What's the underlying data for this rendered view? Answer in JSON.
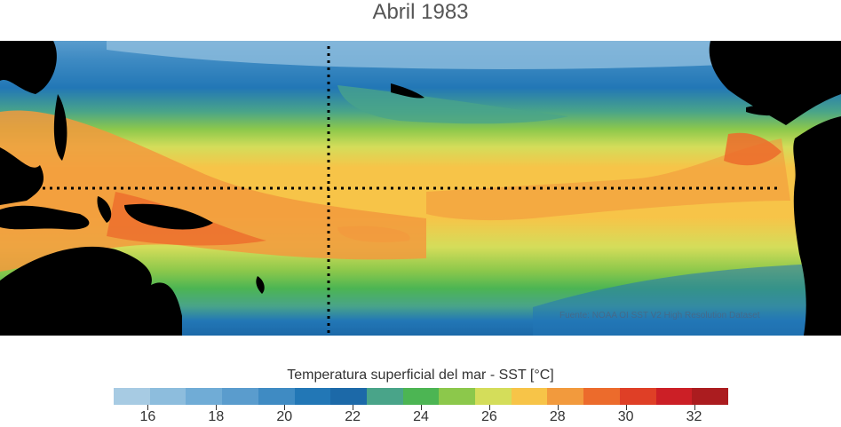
{
  "title": "Abril 1983",
  "credit": "Fuente: NOAA OI SST V2 High Resolution Dataset",
  "colorbar": {
    "label": "Temperatura superficial del mar - SST  [°C]",
    "min": 15,
    "max": 33,
    "step": 1,
    "tick_labels": [
      "16",
      "18",
      "20",
      "22",
      "24",
      "26",
      "28",
      "30",
      "32"
    ],
    "tick_values": [
      16,
      18,
      20,
      22,
      24,
      26,
      28,
      30,
      32
    ],
    "colors": [
      "#a7cbe3",
      "#8dbddd",
      "#70acd6",
      "#5a9ccd",
      "#3f8bc3",
      "#2277b6",
      "#1c69a8",
      "#49a489",
      "#4cb553",
      "#8cc84b",
      "#d4dd5a",
      "#f7c448",
      "#f29a3d",
      "#ec6b2c",
      "#df3f26",
      "#cc1f26",
      "#ab1c1f"
    ]
  },
  "map": {
    "region": "Pacífico tropical",
    "reference_lines": [
      "Ecuador",
      "180°"
    ]
  }
}
